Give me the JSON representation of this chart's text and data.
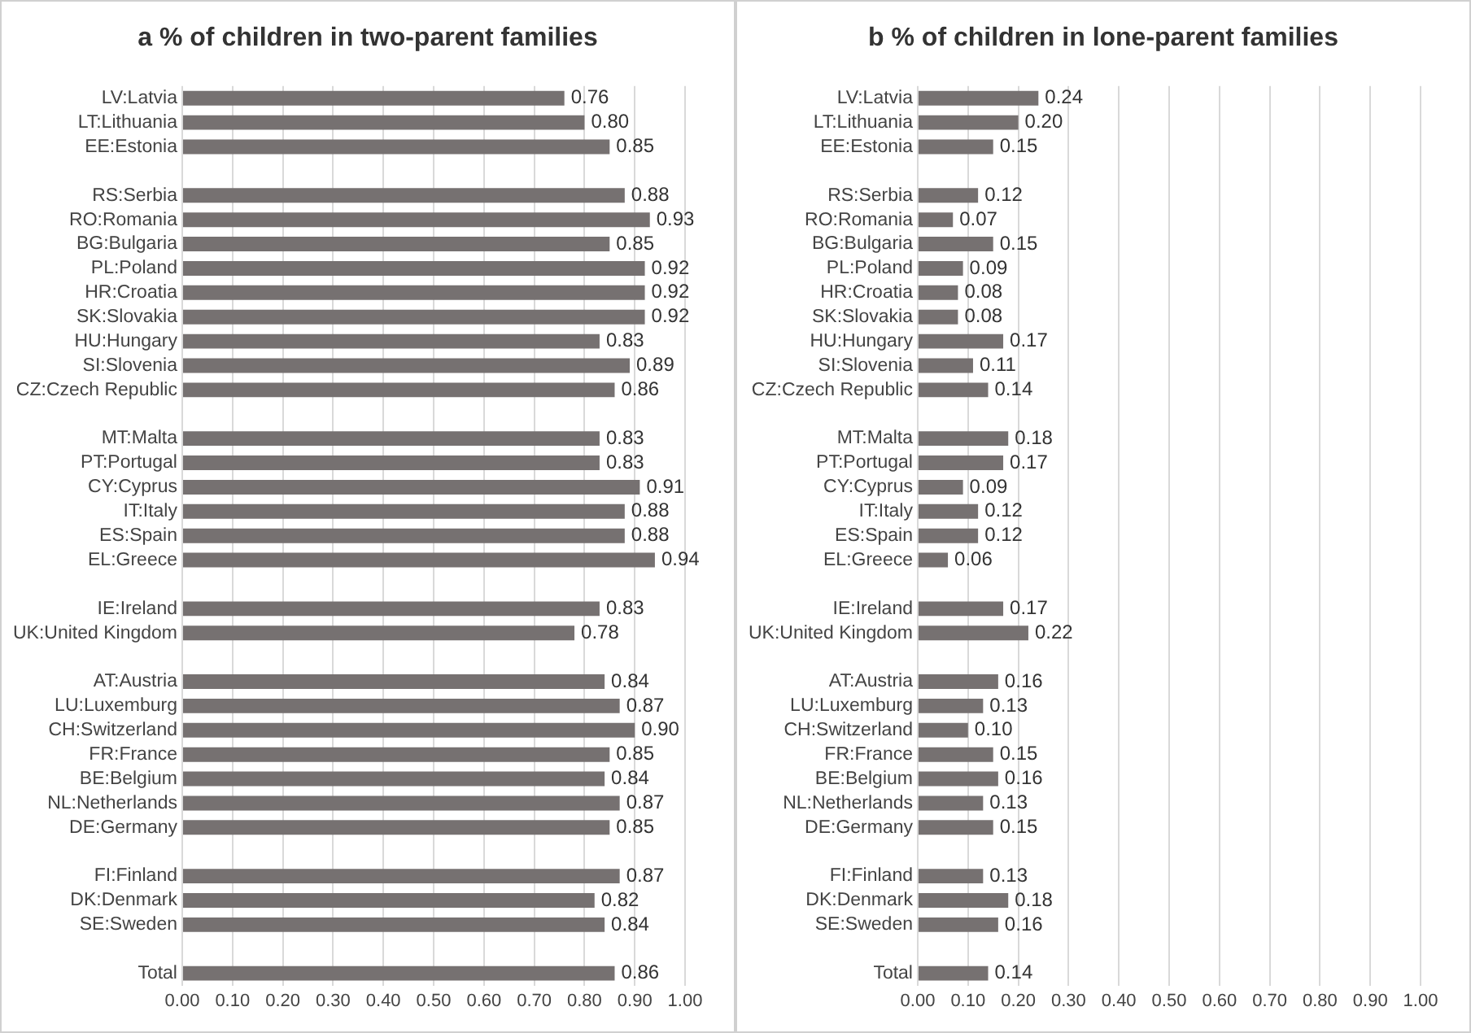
{
  "chart_data": [
    {
      "type": "bar",
      "orientation": "horizontal",
      "title": "a  % of children in two-parent families",
      "categories": [
        "LV:Latvia",
        "LT:Lithuania",
        "EE:Estonia",
        null,
        "RS:Serbia",
        "RO:Romania",
        "BG:Bulgaria",
        "PL:Poland",
        "HR:Croatia",
        "SK:Slovakia",
        "HU:Hungary",
        "SI:Slovenia",
        "CZ:Czech Republic",
        null,
        "MT:Malta",
        "PT:Portugal",
        "CY:Cyprus",
        "IT:Italy",
        "ES:Spain",
        "EL:Greece",
        null,
        "IE:Ireland",
        "UK:United Kingdom",
        null,
        "AT:Austria",
        "LU:Luxemburg",
        "CH:Switzerland",
        "FR:France",
        "BE:Belgium",
        "NL:Netherlands",
        "DE:Germany",
        null,
        "FI:Finland",
        "DK:Denmark",
        "SE:Sweden",
        null,
        "Total"
      ],
      "values": [
        0.76,
        0.8,
        0.85,
        null,
        0.88,
        0.93,
        0.85,
        0.92,
        0.92,
        0.92,
        0.83,
        0.89,
        0.86,
        null,
        0.83,
        0.83,
        0.91,
        0.88,
        0.88,
        0.94,
        null,
        0.83,
        0.78,
        null,
        0.84,
        0.87,
        0.9,
        0.85,
        0.84,
        0.87,
        0.85,
        null,
        0.87,
        0.82,
        0.84,
        null,
        0.86
      ],
      "value_labels": [
        "0.76",
        "0.80",
        "0.85",
        null,
        "0.88",
        "0.93",
        "0.85",
        "0.92",
        "0.92",
        "0.92",
        "0.83",
        "0.89",
        "0.86",
        null,
        "0.83",
        "0.83",
        "0.91",
        "0.88",
        "0.88",
        "0.94",
        null,
        "0.83",
        "0.78",
        null,
        "0.84",
        "0.87",
        "0.90",
        "0.85",
        "0.84",
        "0.87",
        "0.85",
        null,
        "0.87",
        "0.82",
        "0.84",
        null,
        "0.86"
      ],
      "color": "#767171",
      "xlim": [
        0,
        1
      ],
      "xticks": [
        {
          "value": 0,
          "label": "0.00"
        },
        {
          "value": 0.1,
          "label": "0.10"
        },
        {
          "value": 0.2,
          "label": "0.20"
        },
        {
          "value": 0.3,
          "label": "0.30"
        },
        {
          "value": 0.4,
          "label": "0.40"
        },
        {
          "value": 0.5,
          "label": "0.50"
        },
        {
          "value": 0.6,
          "label": "0.60"
        },
        {
          "value": 0.7,
          "label": "0.70"
        },
        {
          "value": 0.8,
          "label": "0.80"
        },
        {
          "value": 0.9,
          "label": "0.90"
        },
        {
          "value": 1,
          "label": "1.00"
        }
      ],
      "grid": "x",
      "legend": false
    },
    {
      "type": "bar",
      "orientation": "horizontal",
      "title": "b  % of children in lone-parent families",
      "categories": [
        "LV:Latvia",
        "LT:Lithuania",
        "EE:Estonia",
        null,
        "RS:Serbia",
        "RO:Romania",
        "BG:Bulgaria",
        "PL:Poland",
        "HR:Croatia",
        "SK:Slovakia",
        "HU:Hungary",
        "SI:Slovenia",
        "CZ:Czech Republic",
        null,
        "MT:Malta",
        "PT:Portugal",
        "CY:Cyprus",
        "IT:Italy",
        "ES:Spain",
        "EL:Greece",
        null,
        "IE:Ireland",
        "UK:United Kingdom",
        null,
        "AT:Austria",
        "LU:Luxemburg",
        "CH:Switzerland",
        "FR:France",
        "BE:Belgium",
        "NL:Netherlands",
        "DE:Germany",
        null,
        "FI:Finland",
        "DK:Denmark",
        "SE:Sweden",
        null,
        "Total"
      ],
      "values": [
        0.24,
        0.2,
        0.15,
        null,
        0.12,
        0.07,
        0.15,
        0.09,
        0.08,
        0.08,
        0.17,
        0.11,
        0.14,
        null,
        0.18,
        0.17,
        0.09,
        0.12,
        0.12,
        0.06,
        null,
        0.17,
        0.22,
        null,
        0.16,
        0.13,
        0.1,
        0.15,
        0.16,
        0.13,
        0.15,
        null,
        0.13,
        0.18,
        0.16,
        null,
        0.14
      ],
      "value_labels": [
        "0.24",
        "0.20",
        "0.15",
        null,
        "0.12",
        "0.07",
        "0.15",
        "0.09",
        "0.08",
        "0.08",
        "0.17",
        "0.11",
        "0.14",
        null,
        "0.18",
        "0.17",
        "0.09",
        "0.12",
        "0.12",
        "0.06",
        null,
        "0.17",
        "0.22",
        null,
        "0.16",
        "0.13",
        "0.10",
        "0.15",
        "0.16",
        "0.13",
        "0.15",
        null,
        "0.13",
        "0.18",
        "0.16",
        null,
        "0.14"
      ],
      "color": "#767171",
      "xlim": [
        0,
        1
      ],
      "xticks": [
        {
          "value": 0,
          "label": "0.00"
        },
        {
          "value": 0.1,
          "label": "0.10"
        },
        {
          "value": 0.2,
          "label": "0.20"
        },
        {
          "value": 0.3,
          "label": "0.30"
        },
        {
          "value": 0.4,
          "label": "0.40"
        },
        {
          "value": 0.5,
          "label": "0.50"
        },
        {
          "value": 0.6,
          "label": "0.60"
        },
        {
          "value": 0.7,
          "label": "0.70"
        },
        {
          "value": 0.8,
          "label": "0.80"
        },
        {
          "value": 0.9,
          "label": "0.90"
        },
        {
          "value": 1,
          "label": "1.00"
        }
      ],
      "grid": "x",
      "legend": false
    }
  ]
}
